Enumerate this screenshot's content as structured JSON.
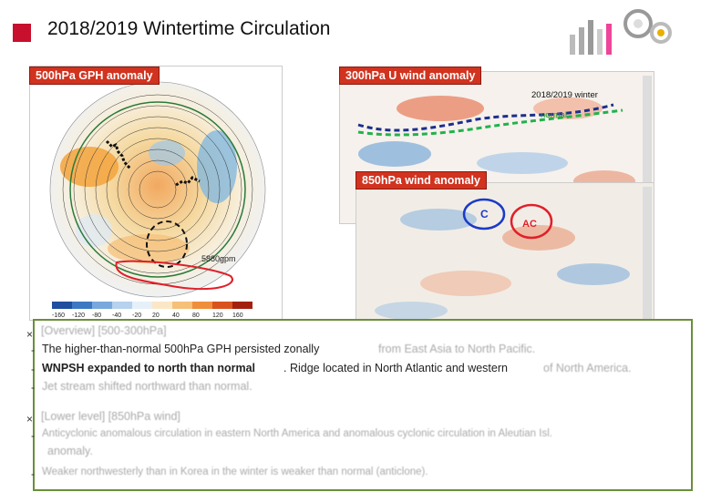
{
  "slide": {
    "title": "2018/2019 Wintertime Circulation"
  },
  "panels": {
    "gph_label": "500hPa GPH anomaly",
    "u300_label": "300hPa U wind anomaly",
    "w850_label": "850hPa wind anomaly",
    "winter_label": "2018/2019 winter",
    "normal_label": "normal",
    "gpm_label": "5880gpm",
    "c_label": "C",
    "ac_label": "AC",
    "gph_colorbar_ticks": [
      "-160",
      "-120",
      "-80",
      "-40",
      "-20",
      "20",
      "40",
      "80",
      "120",
      "160"
    ]
  },
  "text": {
    "header1": "[Overview] [500-300hPa]",
    "line1a": "The higher-than-normal 500hPa GPH persisted zonally",
    "line1b": "from East Asia to North Pacific.",
    "line2a": "WNPSH expanded to north than normal",
    "line2b": ". Ridge located in North Atlantic and western",
    "line2c": "of North America.",
    "line3": "Jet stream shifted northward than normal.",
    "header2": "[Lower level] [850hPa wind]",
    "line4a": "Anticyclonic anomalous circulation in eastern North America and anomalous cyclonic circulation in Aleutian Isl.",
    "line4b": "anomaly.",
    "line5": "Weaker northwesterly than in Korea in the winter is weaker than normal (anticlone)."
  },
  "colors": {
    "accent": "#c8102e",
    "label_bg": "#d1331f",
    "box_border": "#6a8f3a"
  }
}
